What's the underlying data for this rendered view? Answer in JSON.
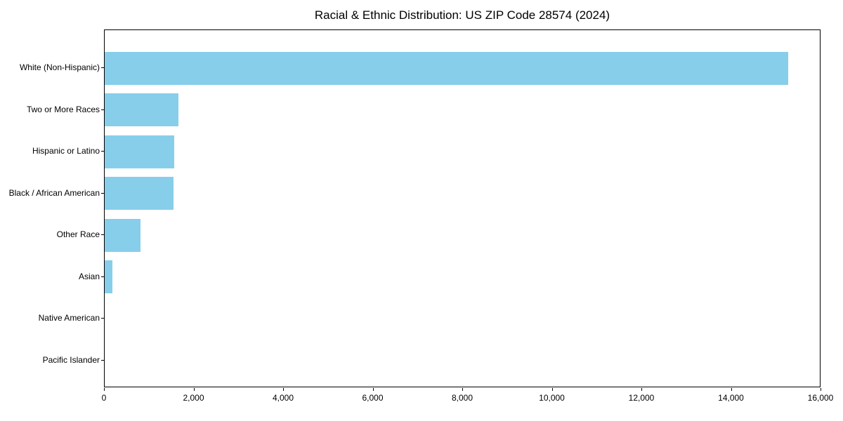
{
  "chart_data": {
    "type": "bar",
    "orientation": "horizontal",
    "title": "Racial & Ethnic Distribution: US ZIP Code 28574 (2024)",
    "categories": [
      "White (Non-Hispanic)",
      "Two or More Races",
      "Hispanic or Latino",
      "Black / African American",
      "Other Race",
      "Asian",
      "Native American",
      "Pacific Islander"
    ],
    "values": [
      15270,
      1650,
      1550,
      1530,
      800,
      180,
      0,
      0
    ],
    "xlabel": "",
    "ylabel": "",
    "xlim": [
      0,
      16000
    ],
    "x_ticks": [
      0,
      2000,
      4000,
      6000,
      8000,
      10000,
      12000,
      14000,
      16000
    ],
    "x_tick_labels": [
      "0",
      "2,000",
      "4,000",
      "6,000",
      "8,000",
      "10,000",
      "12,000",
      "14,000",
      "16,000"
    ],
    "grid": false,
    "legend": false,
    "bar_color": "#87CEEB",
    "background_color": "#FFFFFF",
    "text_color": "#000000"
  }
}
